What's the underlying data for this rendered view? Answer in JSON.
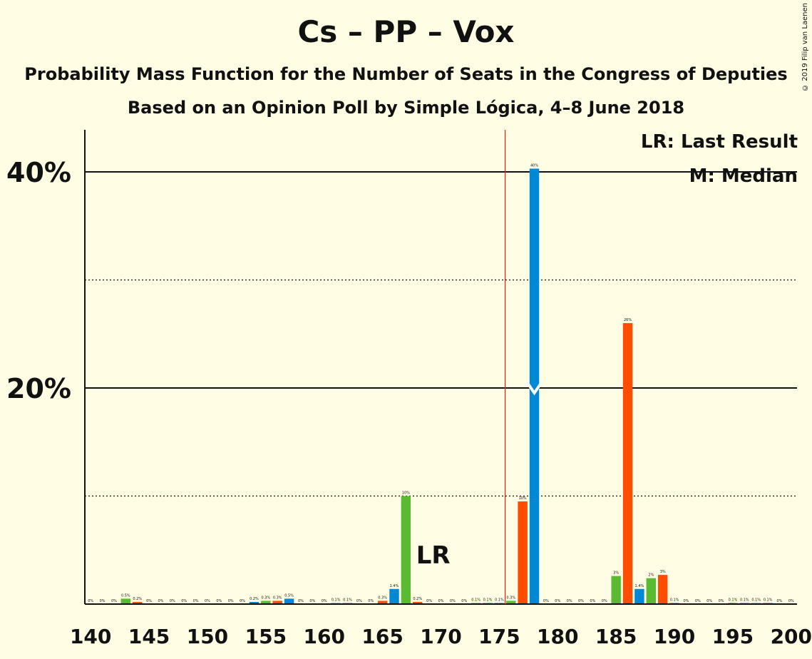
{
  "title": "Cs – PP – Vox",
  "subtitle": "Probability Mass Function for the Number of Seats in the Congress of Deputies",
  "subtitle2": "Based on an Opinion Poll by Simple Lógica, 4–8 June 2018",
  "copyright": "© 2019 Filip van Laenen",
  "legend": {
    "lr": "LR: Last Result",
    "median": "M: Median"
  },
  "lr_label": "LR",
  "median_label": "M",
  "colors": {
    "background": "#fffde3",
    "green": "#5aba32",
    "orange": "#ff4d00",
    "blue": "#0088d6",
    "lr_line": "#e81c1c"
  },
  "chart_data": {
    "type": "bar",
    "xlabel": "",
    "ylabel": "",
    "xlim": [
      140,
      200
    ],
    "ylim": [
      0,
      42
    ],
    "x_ticks": [
      "140",
      "145",
      "150",
      "155",
      "160",
      "165",
      "170",
      "175",
      "180",
      "185",
      "190",
      "195",
      "200"
    ],
    "y_ticks": [
      "20%",
      "40%"
    ],
    "last_result": 176,
    "median": 178,
    "bars": [
      {
        "x": 140,
        "value": 0,
        "label": "0%",
        "color": "green"
      },
      {
        "x": 141,
        "value": 0,
        "label": "0%",
        "color": "orange"
      },
      {
        "x": 142,
        "value": 0,
        "label": "0%",
        "color": "blue"
      },
      {
        "x": 143,
        "value": 0.5,
        "label": "0.5%",
        "color": "green"
      },
      {
        "x": 144,
        "value": 0.2,
        "label": "0.2%",
        "color": "orange"
      },
      {
        "x": 145,
        "value": 0,
        "label": "0%",
        "color": "blue"
      },
      {
        "x": 146,
        "value": 0,
        "label": "0%",
        "color": "green"
      },
      {
        "x": 147,
        "value": 0,
        "label": "0%",
        "color": "orange"
      },
      {
        "x": 148,
        "value": 0,
        "label": "0%",
        "color": "blue"
      },
      {
        "x": 149,
        "value": 0,
        "label": "0%",
        "color": "green"
      },
      {
        "x": 150,
        "value": 0,
        "label": "0%",
        "color": "orange"
      },
      {
        "x": 151,
        "value": 0,
        "label": "0%",
        "color": "blue"
      },
      {
        "x": 152,
        "value": 0,
        "label": "0%",
        "color": "green"
      },
      {
        "x": 153,
        "value": 0,
        "label": "0%",
        "color": "orange"
      },
      {
        "x": 154,
        "value": 0.2,
        "label": "0.2%",
        "color": "blue"
      },
      {
        "x": 155,
        "value": 0.3,
        "label": "0.3%",
        "color": "green"
      },
      {
        "x": 156,
        "value": 0.3,
        "label": "0.3%",
        "color": "orange"
      },
      {
        "x": 157,
        "value": 0.5,
        "label": "0.5%",
        "color": "blue"
      },
      {
        "x": 158,
        "value": 0,
        "label": "0%",
        "color": "green"
      },
      {
        "x": 159,
        "value": 0,
        "label": "0%",
        "color": "orange"
      },
      {
        "x": 160,
        "value": 0,
        "label": "0%",
        "color": "blue"
      },
      {
        "x": 161,
        "value": 0.1,
        "label": "0.1%",
        "color": "green"
      },
      {
        "x": 162,
        "value": 0.1,
        "label": "0.1%",
        "color": "orange"
      },
      {
        "x": 163,
        "value": 0,
        "label": "0%",
        "color": "blue"
      },
      {
        "x": 164,
        "value": 0,
        "label": "0%",
        "color": "green"
      },
      {
        "x": 165,
        "value": 0.3,
        "label": "0.3%",
        "color": "orange"
      },
      {
        "x": 166,
        "value": 1.4,
        "label": "1.4%",
        "color": "blue"
      },
      {
        "x": 167,
        "value": 10,
        "label": "10%",
        "color": "green"
      },
      {
        "x": 168,
        "value": 0.2,
        "label": "0.2%",
        "color": "orange"
      },
      {
        "x": 169,
        "value": 0,
        "label": "0%",
        "color": "blue"
      },
      {
        "x": 170,
        "value": 0,
        "label": "0%",
        "color": "green"
      },
      {
        "x": 171,
        "value": 0,
        "label": "0%",
        "color": "orange"
      },
      {
        "x": 172,
        "value": 0,
        "label": "0%",
        "color": "blue"
      },
      {
        "x": 173,
        "value": 0.1,
        "label": "0.1%",
        "color": "green"
      },
      {
        "x": 174,
        "value": 0.1,
        "label": "0.1%",
        "color": "orange"
      },
      {
        "x": 175,
        "value": 0.1,
        "label": "0.1%",
        "color": "blue"
      },
      {
        "x": 176,
        "value": 0.3,
        "label": "0.3%",
        "color": "green"
      },
      {
        "x": 177,
        "value": 9.5,
        "label": "10%",
        "color": "orange"
      },
      {
        "x": 178,
        "value": 40.3,
        "label": "40%",
        "color": "blue"
      },
      {
        "x": 179,
        "value": 0,
        "label": "0%",
        "color": "green"
      },
      {
        "x": 180,
        "value": 0,
        "label": "0%",
        "color": "orange"
      },
      {
        "x": 181,
        "value": 0,
        "label": "0%",
        "color": "blue"
      },
      {
        "x": 182,
        "value": 0,
        "label": "0%",
        "color": "green"
      },
      {
        "x": 183,
        "value": 0,
        "label": "0%",
        "color": "orange"
      },
      {
        "x": 184,
        "value": 0,
        "label": "0%",
        "color": "blue"
      },
      {
        "x": 185,
        "value": 2.6,
        "label": "3%",
        "color": "green"
      },
      {
        "x": 186,
        "value": 26,
        "label": "26%",
        "color": "orange"
      },
      {
        "x": 187,
        "value": 1.4,
        "label": "1.4%",
        "color": "blue"
      },
      {
        "x": 188,
        "value": 2.4,
        "label": "2%",
        "color": "green"
      },
      {
        "x": 189,
        "value": 2.7,
        "label": "3%",
        "color": "orange"
      },
      {
        "x": 190,
        "value": 0.1,
        "label": "0.1%",
        "color": "blue"
      },
      {
        "x": 191,
        "value": 0,
        "label": "0%",
        "color": "green"
      },
      {
        "x": 192,
        "value": 0,
        "label": "0%",
        "color": "orange"
      },
      {
        "x": 193,
        "value": 0,
        "label": "0%",
        "color": "blue"
      },
      {
        "x": 194,
        "value": 0,
        "label": "0%",
        "color": "green"
      },
      {
        "x": 195,
        "value": 0.1,
        "label": "0.1%",
        "color": "orange"
      },
      {
        "x": 196,
        "value": 0.1,
        "label": "0.1%",
        "color": "blue"
      },
      {
        "x": 197,
        "value": 0.1,
        "label": "0.1%",
        "color": "green"
      },
      {
        "x": 198,
        "value": 0.1,
        "label": "0.1%",
        "color": "orange"
      },
      {
        "x": 199,
        "value": 0,
        "label": "0%",
        "color": "blue"
      },
      {
        "x": 200,
        "value": 0,
        "label": "0%",
        "color": "green"
      }
    ]
  }
}
